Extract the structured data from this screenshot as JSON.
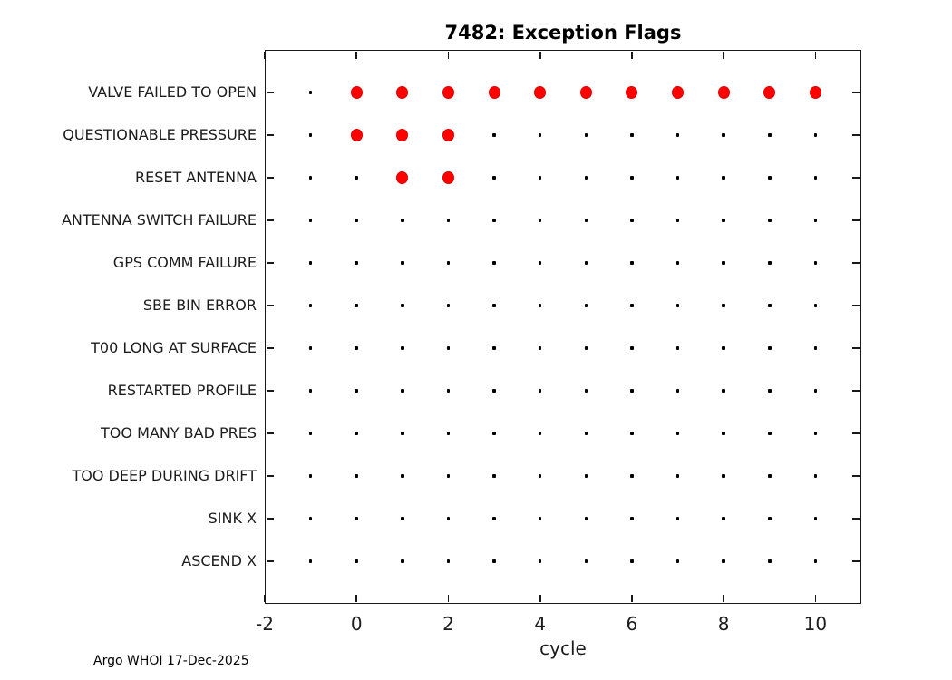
{
  "figure": {
    "footer": "Argo WHOI 17-Dec-2025"
  },
  "chart_data": {
    "type": "scatter",
    "title": "7482: Exception Flags",
    "xlabel": "cycle",
    "xlim": [
      -2,
      11
    ],
    "xticks": [
      -2,
      0,
      2,
      4,
      6,
      8,
      10
    ],
    "cycles": [
      -1,
      0,
      1,
      2,
      3,
      4,
      5,
      6,
      7,
      8,
      9,
      10
    ],
    "marker_legend": {
      "flag_raised": "large red filled circle",
      "no_flag": "small black dot"
    },
    "categories": [
      {
        "label": "VALVE FAILED TO OPEN",
        "flagged_cycles": [
          0,
          1,
          2,
          3,
          4,
          5,
          6,
          7,
          8,
          9,
          10
        ]
      },
      {
        "label": "QUESTIONABLE PRESSURE",
        "flagged_cycles": [
          0,
          1,
          2
        ]
      },
      {
        "label": "RESET ANTENNA",
        "flagged_cycles": [
          1,
          2
        ]
      },
      {
        "label": "ANTENNA SWITCH FAILURE",
        "flagged_cycles": []
      },
      {
        "label": "GPS COMM FAILURE",
        "flagged_cycles": []
      },
      {
        "label": "SBE BIN ERROR",
        "flagged_cycles": []
      },
      {
        "label": "T00 LONG AT SURFACE",
        "flagged_cycles": []
      },
      {
        "label": "RESTARTED PROFILE",
        "flagged_cycles": []
      },
      {
        "label": "TOO MANY BAD PRES",
        "flagged_cycles": []
      },
      {
        "label": "TOO DEEP DURING DRIFT",
        "flagged_cycles": []
      },
      {
        "label": "SINK X",
        "flagged_cycles": []
      },
      {
        "label": "ASCEND X",
        "flagged_cycles": []
      }
    ],
    "colors": {
      "flag_marker": "#ff0000",
      "no_flag_marker": "#000000",
      "axis": "#181818",
      "background": "#ffffff"
    }
  }
}
